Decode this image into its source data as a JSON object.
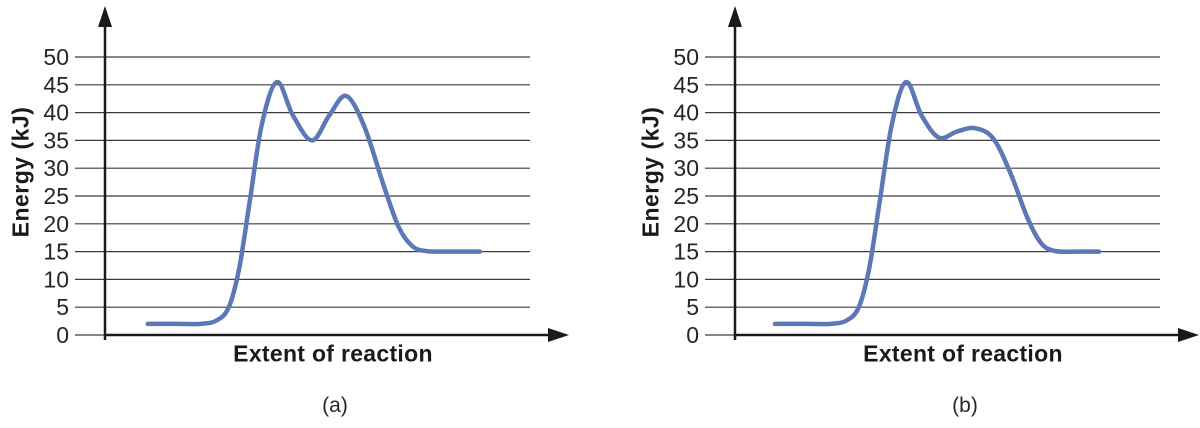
{
  "figure": {
    "background": "#ffffff",
    "description": "Two reaction coordinate energy diagrams with two transition-state peaks each"
  },
  "colors": {
    "line": "#5C78B5",
    "grid": "#3d3d3d",
    "axis": "#1a1a1a",
    "text": "#262626"
  },
  "chart_data": [
    {
      "type": "line",
      "caption": "(a)",
      "title": "",
      "xlabel": "Extent of reaction",
      "ylabel": "Energy (kJ)",
      "ylim": [
        0,
        50
      ],
      "yticks": [
        0,
        5,
        10,
        15,
        20,
        25,
        30,
        35,
        40,
        45,
        50
      ],
      "grid": true,
      "legend": false,
      "key_values": {
        "reactant_energy_kj": 2,
        "first_peak_kj": 45,
        "intermediate_valley_kj": 35,
        "second_peak_kj": 43,
        "product_energy_kj": 15
      },
      "curve": [
        [
          0.094,
          2
        ],
        [
          0.16,
          2
        ],
        [
          0.21,
          2
        ],
        [
          0.245,
          2.6
        ],
        [
          0.272,
          5
        ],
        [
          0.295,
          12
        ],
        [
          0.318,
          24
        ],
        [
          0.345,
          38
        ],
        [
          0.378,
          45.5
        ],
        [
          0.413,
          39.5
        ],
        [
          0.455,
          35
        ],
        [
          0.493,
          39.5
        ],
        [
          0.53,
          43
        ],
        [
          0.57,
          37.5
        ],
        [
          0.61,
          27.5
        ],
        [
          0.645,
          19.5
        ],
        [
          0.675,
          16
        ],
        [
          0.705,
          15.1
        ],
        [
          0.75,
          15
        ],
        [
          0.824,
          15
        ]
      ],
      "layout": {
        "axis_x": 105,
        "grid_on": true,
        "legend_position": "none"
      }
    },
    {
      "type": "line",
      "caption": "(b)",
      "title": "",
      "xlabel": "Extent of reaction",
      "ylabel": "Energy (kJ)",
      "ylim": [
        0,
        50
      ],
      "yticks": [
        0,
        5,
        10,
        15,
        20,
        25,
        30,
        35,
        40,
        45,
        50
      ],
      "grid": true,
      "legend": false,
      "key_values": {
        "reactant_energy_kj": 2,
        "first_peak_kj": 45,
        "intermediate_valley_kj": 35,
        "second_peak_kj": 37,
        "product_energy_kj": 15
      },
      "curve": [
        [
          0.088,
          2
        ],
        [
          0.16,
          2
        ],
        [
          0.21,
          2
        ],
        [
          0.245,
          2.6
        ],
        [
          0.272,
          5
        ],
        [
          0.295,
          12
        ],
        [
          0.318,
          24
        ],
        [
          0.345,
          38
        ],
        [
          0.376,
          45.5
        ],
        [
          0.41,
          39.5
        ],
        [
          0.448,
          35.5
        ],
        [
          0.488,
          36.6
        ],
        [
          0.528,
          37.2
        ],
        [
          0.568,
          35.3
        ],
        [
          0.606,
          29
        ],
        [
          0.643,
          21
        ],
        [
          0.673,
          16.5
        ],
        [
          0.703,
          15.1
        ],
        [
          0.75,
          15
        ],
        [
          0.8,
          15
        ]
      ],
      "layout": {
        "axis_x": 135,
        "grid_on": true,
        "legend_position": "none"
      }
    }
  ]
}
